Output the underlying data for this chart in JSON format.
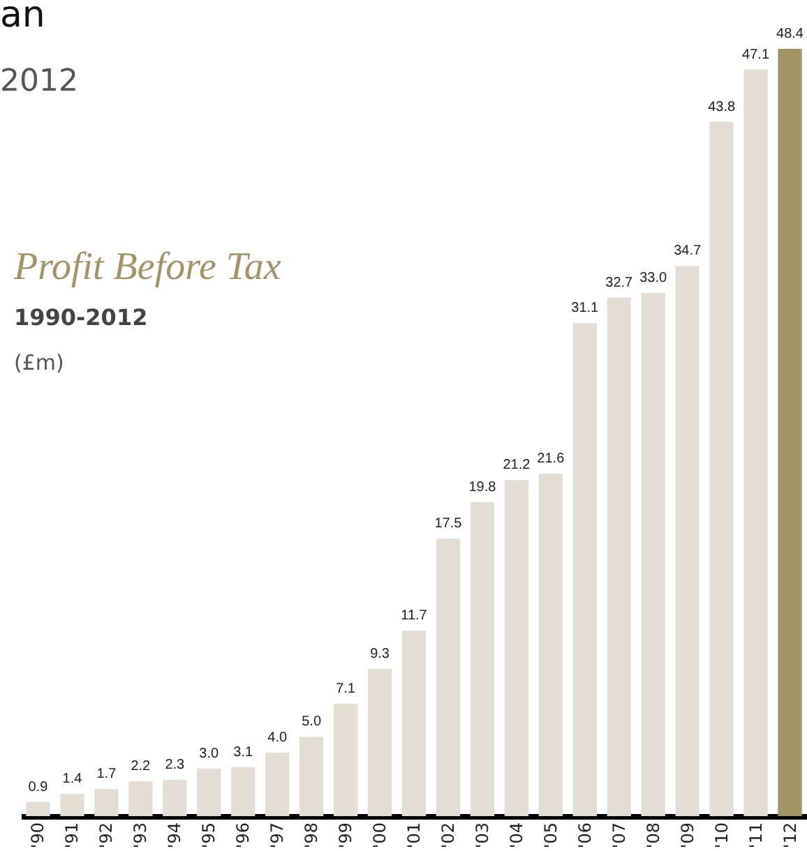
{
  "chart_data": {
    "type": "bar",
    "title": "Profit Before Tax",
    "subtitle": "1990-2012",
    "ylabel": "(£m)",
    "annotations": [
      "an",
      "2012"
    ],
    "categories": [
      "'90",
      "'91",
      "'92",
      "'93",
      "'94",
      "'95",
      "'96",
      "'97",
      "'98",
      "'99",
      "'00",
      "'01",
      "'02",
      "'03",
      "'04",
      "'05",
      "'06",
      "'07",
      "'08",
      "'09",
      "'10",
      "'11",
      "'12"
    ],
    "values": [
      0.9,
      1.4,
      1.7,
      2.2,
      2.3,
      3.0,
      3.1,
      4.0,
      5.0,
      7.1,
      9.3,
      11.7,
      17.5,
      19.8,
      21.2,
      21.6,
      31.1,
      32.7,
      33.0,
      34.7,
      43.8,
      47.1,
      48.4
    ],
    "colors": [
      "#e2ded4",
      "#e2ded4",
      "#e2ded4",
      "#e2ded4",
      "#e2ded4",
      "#e2ded4",
      "#e2ded4",
      "#e2ded4",
      "#e2ded4",
      "#e2ded4",
      "#e2ded4",
      "#e2ded4",
      "#e2ded4",
      "#e2ded4",
      "#e2ded4",
      "#e2ded4",
      "#e2ded4",
      "#e2ded4",
      "#e2ded4",
      "#e2ded4",
      "#e2ded4",
      "#e2ded4",
      "#a39467"
    ],
    "value_labels": [
      "0.9",
      "1.4",
      "1.7",
      "2.2",
      "2.3",
      "3.0",
      "3.1",
      "4.0",
      "5.0",
      "7.1",
      "9.3",
      "11.7",
      "17.5",
      "19.8",
      "21.2",
      "21.6",
      "31.1",
      "32.7",
      "33.0",
      "34.7",
      "43.8",
      "47.1",
      "48.4"
    ]
  }
}
